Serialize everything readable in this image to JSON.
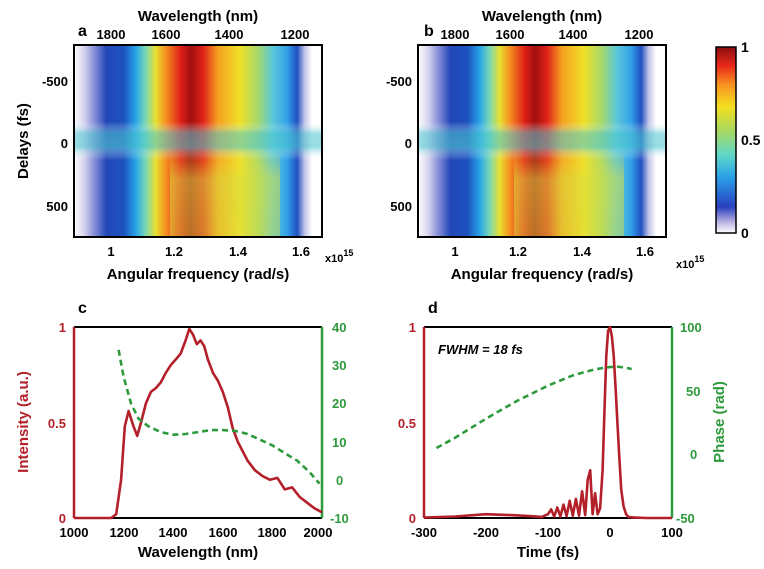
{
  "colors": {
    "intensity": "#b3202a",
    "phase": "#2e9a3c",
    "axis": "#000000"
  },
  "panels": {
    "a": {
      "letter": "a",
      "top_axis_label": "Wavelength (nm)",
      "top_ticks": [
        "1800",
        "1600",
        "1400",
        "1200"
      ],
      "left_axis_label": "Delays (fs)",
      "left_ticks": [
        "-500",
        "0",
        "500"
      ],
      "bottom_axis_label": "Angular frequency (rad/s)",
      "bottom_ticks": [
        "1",
        "1.2",
        "1.4",
        "1.6"
      ],
      "exponent": "x10",
      "exponent_power": "15"
    },
    "b": {
      "letter": "b",
      "top_axis_label": "Wavelength (nm)",
      "top_ticks": [
        "1800",
        "1600",
        "1400",
        "1200"
      ],
      "left_ticks": [
        "-500",
        "0",
        "500"
      ],
      "bottom_axis_label": "Angular frequency (rad/s)",
      "bottom_ticks": [
        "1",
        "1.2",
        "1.4",
        "1.6"
      ],
      "exponent": "x10",
      "exponent_power": "15"
    },
    "colorbar": {
      "ticks": [
        "1",
        "0.5",
        "0"
      ]
    },
    "c": {
      "letter": "c",
      "x_label": "Wavelength (nm)",
      "y_left_label": "Intensity (a.u.)",
      "x_ticks": [
        "1000",
        "1200",
        "1400",
        "1600",
        "1800",
        "2000"
      ],
      "y_left_ticks": [
        "1",
        "0.5",
        "0"
      ],
      "y_right_ticks": [
        "40",
        "30",
        "20",
        "10",
        "0",
        "-10"
      ]
    },
    "d": {
      "letter": "d",
      "x_label": "Time (fs)",
      "y_right_label": "Phase (rad)",
      "annotation": "FWHM = 18 fs",
      "x_ticks": [
        "-300",
        "-200",
        "-100",
        "0",
        "100"
      ],
      "y_left_ticks": [
        "1",
        "0.5",
        "0"
      ],
      "y_right_ticks": [
        "100",
        "50",
        "0",
        "-50"
      ]
    }
  },
  "chart_data": [
    {
      "type": "heatmap",
      "panel": "a",
      "xlabel": "Angular frequency (rad/s)",
      "ylabel": "Delays (fs)",
      "xlim": [
        0.92,
        1.68
      ],
      "ylim": [
        -750,
        750
      ],
      "x_scale_note": "x10^15",
      "colorscale": "jet",
      "zlim": [
        0,
        1
      ]
    },
    {
      "type": "heatmap",
      "panel": "b",
      "xlabel": "Angular frequency (rad/s)",
      "xlim": [
        0.92,
        1.68
      ],
      "ylim": [
        -750,
        750
      ],
      "colorscale": "jet",
      "zlim": [
        0,
        1
      ]
    },
    {
      "type": "line",
      "panel": "c",
      "xlabel": "Wavelength (nm)",
      "ylabel": "Intensity (a.u.)",
      "xlim": [
        1000,
        2000
      ],
      "ylim": [
        0,
        1
      ],
      "y2lim": [
        -10,
        40
      ],
      "series": [
        {
          "axis": "left",
          "x": [
            1000,
            1150,
            1170,
            1190,
            1205,
            1220,
            1240,
            1255,
            1270,
            1290,
            1310,
            1330,
            1350,
            1370,
            1390,
            1410,
            1430,
            1450,
            1465,
            1480,
            1495,
            1510,
            1525,
            1540,
            1560,
            1580,
            1600,
            1620,
            1640,
            1660,
            1680,
            1700,
            1730,
            1760,
            1790,
            1820,
            1850,
            1880,
            1910,
            1940,
            1970,
            2000
          ],
          "y": [
            0,
            0,
            0.02,
            0.2,
            0.48,
            0.56,
            0.48,
            0.43,
            0.5,
            0.6,
            0.66,
            0.68,
            0.71,
            0.76,
            0.8,
            0.83,
            0.86,
            0.93,
            0.99,
            0.96,
            0.91,
            0.93,
            0.9,
            0.83,
            0.76,
            0.72,
            0.66,
            0.58,
            0.47,
            0.4,
            0.35,
            0.3,
            0.25,
            0.22,
            0.2,
            0.21,
            0.15,
            0.16,
            0.11,
            0.08,
            0.05,
            0.03
          ]
        },
        {
          "axis": "right",
          "style": "dashed",
          "x": [
            1180,
            1200,
            1230,
            1260,
            1300,
            1350,
            1400,
            1450,
            1500,
            1550,
            1600,
            1650,
            1700,
            1750,
            1800,
            1850,
            1900,
            1950,
            1990
          ],
          "y": [
            34,
            27,
            20,
            16,
            14,
            12.5,
            11.8,
            12,
            12.5,
            13,
            13,
            12.8,
            12,
            10.5,
            9,
            7,
            5,
            2,
            -1
          ]
        }
      ]
    },
    {
      "type": "line",
      "panel": "d",
      "xlabel": "Time (fs)",
      "ylabel": "Phase (rad)",
      "xlim": [
        -300,
        100
      ],
      "ylim": [
        0,
        1
      ],
      "y2lim": [
        -50,
        100
      ],
      "series": [
        {
          "axis": "left",
          "x": [
            -300,
            -250,
            -200,
            -160,
            -130,
            -110,
            -100,
            -95,
            -90,
            -85,
            -80,
            -75,
            -70,
            -65,
            -60,
            -55,
            -50,
            -45,
            -40,
            -36,
            -32,
            -28,
            -24,
            -20,
            -16,
            -12,
            -9,
            -6,
            -3,
            0,
            3,
            6,
            9,
            12,
            15,
            18,
            22,
            26,
            30,
            40,
            60,
            100
          ],
          "y": [
            0.002,
            0.008,
            0.02,
            0.015,
            0.01,
            0.006,
            0.02,
            0.045,
            0.008,
            0.055,
            0.008,
            0.07,
            0.01,
            0.09,
            0.012,
            0.1,
            0.012,
            0.14,
            0.015,
            0.2,
            0.25,
            0.02,
            0.13,
            0.02,
            0.05,
            0.25,
            0.55,
            0.85,
            0.98,
            1.0,
            0.95,
            0.85,
            0.68,
            0.5,
            0.32,
            0.15,
            0.06,
            0.02,
            0.005,
            0.002,
            0.0,
            0.0
          ]
        },
        {
          "axis": "right",
          "style": "dashed",
          "x": [
            -280,
            -250,
            -200,
            -150,
            -100,
            -60,
            -30,
            -10,
            0,
            10,
            25,
            35
          ],
          "y": [
            5,
            13,
            28,
            42,
            54,
            62,
            66,
            68,
            68.5,
            69,
            68,
            67
          ]
        }
      ]
    }
  ]
}
